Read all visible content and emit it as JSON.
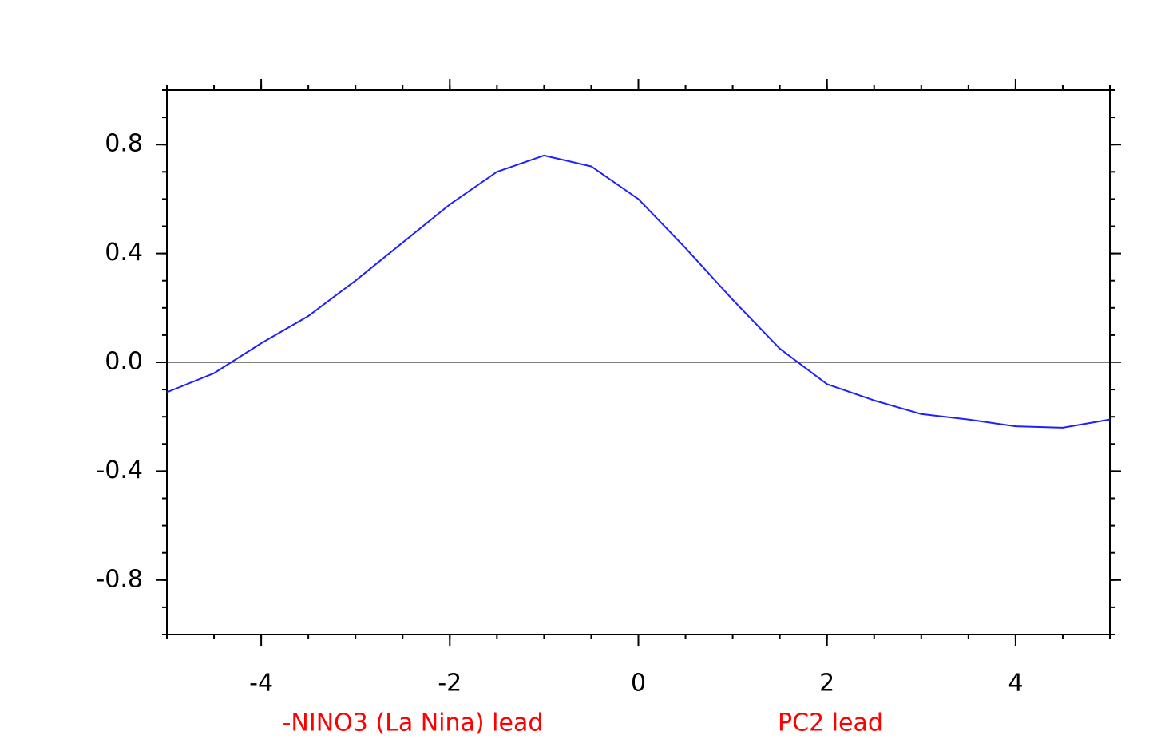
{
  "chart_data": {
    "type": "line",
    "x": [
      -5,
      -4.5,
      -4,
      -3.5,
      -3,
      -2.5,
      -2,
      -1.5,
      -1,
      -0.5,
      0,
      0.5,
      1,
      1.5,
      2,
      2.5,
      3,
      3.5,
      4,
      4.5,
      5
    ],
    "series": [
      {
        "color": "#1f1fff",
        "values": [
          -0.11,
          -0.04,
          0.07,
          0.17,
          0.3,
          0.44,
          0.58,
          0.7,
          0.76,
          0.72,
          0.6,
          0.42,
          0.23,
          0.05,
          -0.08,
          -0.14,
          -0.19,
          -0.21,
          -0.235,
          -0.24,
          -0.21
        ]
      }
    ],
    "xlim": [
      -5,
      5
    ],
    "xticks": [
      -4,
      -2,
      0,
      2,
      4
    ],
    "ylim": [
      -1,
      1
    ],
    "yticks": [
      -0.8,
      -0.4,
      {
        "value": 0,
        "label": "0.0"
      },
      0.4,
      0.8
    ],
    "annotations": [
      "-NINO3 (La Nina) lead",
      "PC2 lead"
    ]
  }
}
